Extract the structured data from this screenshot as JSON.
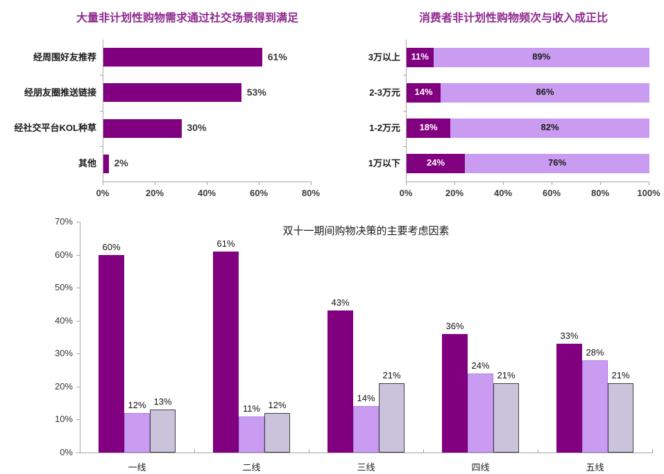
{
  "palette": {
    "dark_purple": "#800080",
    "light_purple": "#C99CF2",
    "lavender_gray": "#CBC3DC",
    "lavender_border": "#3F3F3F",
    "light_purple_border": "#AE7EDE",
    "title_purple": "#8F2A8F",
    "axis_gray": "#A6A6A6",
    "label_dark": "#3A3A3A",
    "stack_label_light": "#FFFFFF",
    "stack_label_dark": "#1A1A1A"
  },
  "chart_data": [
    {
      "type": "bar",
      "orientation": "horizontal",
      "title": "大量非计划性购物需求通过社交场景得到满足",
      "categories": [
        "经周围好友推荐",
        "经朋友圈推送链接",
        "经社交平台KOL种草",
        "其他"
      ],
      "values": [
        61,
        53,
        30,
        2
      ],
      "data_labels": [
        "61%",
        "53%",
        "30%",
        "2%"
      ],
      "xlim": [
        0,
        80
      ],
      "x_ticks": [
        "0%",
        "20%",
        "40%",
        "60%",
        "80%"
      ],
      "bar_color": "#800080",
      "grid": "off",
      "legend": "none"
    },
    {
      "type": "bar",
      "orientation": "horizontal-stacked",
      "title": "消费者非计划性购物频次与收入成正比",
      "categories": [
        "3万以上",
        "2-3万元",
        "1-2万元",
        "1万以下"
      ],
      "series": [
        {
          "values": [
            11,
            14,
            18,
            24
          ],
          "data_labels": [
            "11%",
            "14%",
            "18%",
            "24%"
          ],
          "color": "#800080",
          "label_color": "#FFFFFF"
        },
        {
          "values": [
            89,
            86,
            82,
            76
          ],
          "data_labels": [
            "89%",
            "86%",
            "82%",
            "76%"
          ],
          "color": "#C99CF2",
          "label_color": "#1A1A1A"
        }
      ],
      "xlim": [
        0,
        100
      ],
      "x_ticks": [
        "0%",
        "20%",
        "40%",
        "60%",
        "80%",
        "100%"
      ],
      "grid": "off",
      "legend": "none"
    },
    {
      "type": "bar",
      "orientation": "vertical-grouped",
      "title": "双十一期间购物决策的主要考虑因素",
      "categories": [
        "一线",
        "二线",
        "三线",
        "四线",
        "五线"
      ],
      "series": [
        {
          "values": [
            60,
            61,
            43,
            36,
            33
          ],
          "data_labels": [
            "60%",
            "61%",
            "43%",
            "36%",
            "33%"
          ],
          "color": "#800080"
        },
        {
          "values": [
            12,
            11,
            14,
            24,
            28
          ],
          "data_labels": [
            "12%",
            "11%",
            "14%",
            "24%",
            "28%"
          ],
          "color": "#C99CF2",
          "border": "#AE7EDE"
        },
        {
          "values": [
            13,
            12,
            21,
            21,
            21
          ],
          "data_labels": [
            "13%",
            "12%",
            "21%",
            "21%",
            "21%"
          ],
          "color": "#CBC3DC",
          "border": "#3F3F3F"
        }
      ],
      "ylim": [
        0,
        70
      ],
      "y_ticks": [
        "0%",
        "10%",
        "20%",
        "30%",
        "40%",
        "50%",
        "60%",
        "70%"
      ],
      "grid": "off",
      "legend": "none"
    }
  ]
}
